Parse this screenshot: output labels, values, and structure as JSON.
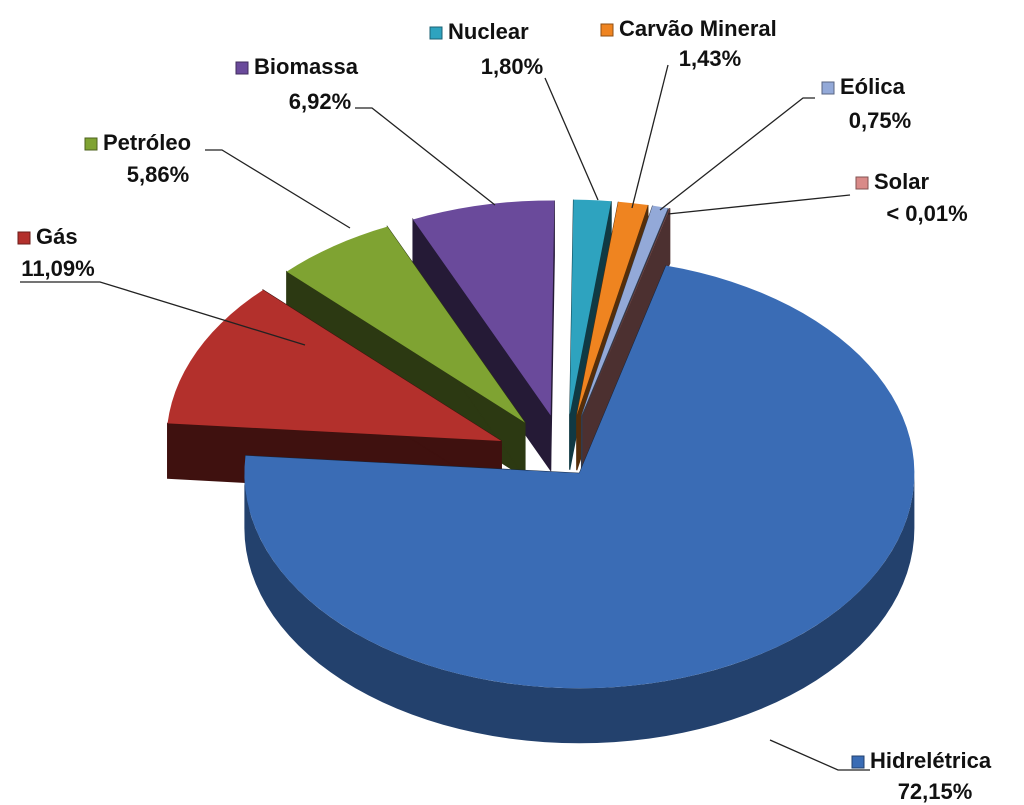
{
  "chart_data": {
    "type": "pie",
    "categories": [
      "Hidrelétrica",
      "Gás",
      "Petróleo",
      "Biomassa",
      "Nuclear",
      "Carvão Mineral",
      "Eólica",
      "Solar"
    ],
    "values": [
      72.15,
      11.09,
      5.86,
      6.92,
      1.8,
      1.43,
      0.75,
      0.01
    ],
    "value_labels": [
      "72,15%",
      "11,09%",
      "5,86%",
      "6,92%",
      "1,80%",
      "1,43%",
      "0,75%",
      "< 0,01%"
    ],
    "colors": [
      "#3a6cb5",
      "#b3302c",
      "#7fa332",
      "#6a4a9b",
      "#2ea3bf",
      "#ef8420",
      "#93a9d8",
      "#d98a88"
    ]
  }
}
